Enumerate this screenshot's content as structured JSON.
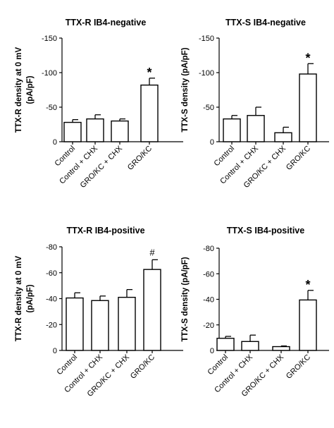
{
  "chart_data": [
    {
      "type": "bar",
      "title": "TTX-R  IB4-negative",
      "ylabel_lines": [
        "TTX-R density at 0 mV",
        "(pA/pF)"
      ],
      "categories": [
        "Control",
        "Control + CHX",
        "GRO/KC + CHX",
        "GRO/KC"
      ],
      "values": [
        -28,
        -33,
        -30,
        -82
      ],
      "errors": [
        4,
        6,
        3,
        10
      ],
      "ylim": [
        0,
        -150
      ],
      "yticks": [
        0,
        -50,
        -100,
        -150
      ],
      "ytick_labels": [
        "0",
        "-50",
        "-100",
        "-150"
      ],
      "annotations": [
        {
          "category": "GRO/KC",
          "text": "*"
        }
      ]
    },
    {
      "type": "bar",
      "title": "TTX-S  IB4-negative",
      "ylabel_lines": [
        "TTX-S density (pA/pF)"
      ],
      "categories": [
        "Control",
        "Control + CHX",
        "GRO/KC + CHX",
        "GRO/KC"
      ],
      "values": [
        -33,
        -38,
        -13,
        -98
      ],
      "errors": [
        5,
        12,
        8,
        15
      ],
      "ylim": [
        0,
        -150
      ],
      "yticks": [
        0,
        -50,
        -100,
        -150
      ],
      "ytick_labels": [
        "0",
        "-50",
        "-100",
        "-150"
      ],
      "annotations": [
        {
          "category": "GRO/KC",
          "text": "*"
        }
      ]
    },
    {
      "type": "bar",
      "title": "TTX-R  IB4-positive",
      "ylabel_lines": [
        "TTX-R density at 0 mV",
        "(pA/pF)"
      ],
      "categories": [
        "Control",
        "Control + CHX",
        "GRO/KC + CHX",
        "GRO/KC"
      ],
      "values": [
        -40.5,
        -38.5,
        -41,
        -62.5
      ],
      "errors": [
        4,
        3.5,
        6,
        7.5
      ],
      "ylim": [
        0,
        -80
      ],
      "yticks": [
        0,
        -20,
        -40,
        -60,
        -80
      ],
      "ytick_labels": [
        "0",
        "-20",
        "-40",
        "-60",
        "-80"
      ],
      "annotations": [
        {
          "category": "GRO/KC",
          "text": "#"
        }
      ]
    },
    {
      "type": "bar",
      "title": "TTX-S  IB4-positive",
      "ylabel_lines": [
        "TTX-S density (pA/pF)"
      ],
      "categories": [
        "Control",
        "Control + CHX",
        "GRO/KC + CHX",
        "GRO/KC"
      ],
      "values": [
        -9.5,
        -7,
        -3,
        -39.5
      ],
      "errors": [
        1.5,
        5,
        0.5,
        7.5
      ],
      "ylim": [
        0,
        -80
      ],
      "yticks": [
        0,
        -20,
        -40,
        -60,
        -80
      ],
      "ytick_labels": [
        "0",
        "-20",
        "-40",
        "-60",
        "-80"
      ],
      "annotations": [
        {
          "category": "GRO/KC",
          "text": "*"
        }
      ]
    }
  ]
}
